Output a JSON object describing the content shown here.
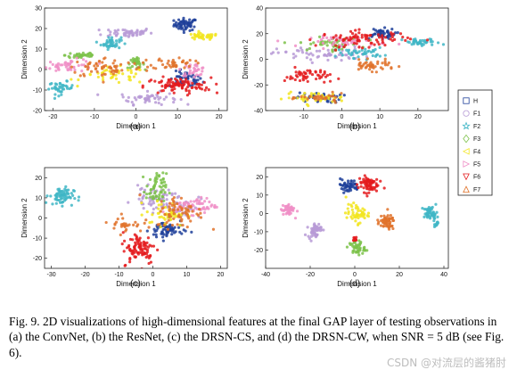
{
  "caption": "Fig. 9. 2D visualizations of high-dimensional features at the final GAP layer of testing observations in (a) the ConvNet, (b) the ResNet, (c) the DRSN-CS, and (d) the DRSN-CW, when SNR = 5 dB (see Fig. 6).",
  "watermark": "CSDN @对流层的酱猪肘",
  "legend": {
    "items": [
      {
        "label": "H",
        "marker": "square",
        "color": "#1f3f9a"
      },
      {
        "label": "F1",
        "marker": "circle",
        "color": "#b79ad6"
      },
      {
        "label": "F2",
        "marker": "star",
        "color": "#3fb6c6"
      },
      {
        "label": "F3",
        "marker": "diamond",
        "color": "#7dc24a"
      },
      {
        "label": "F4",
        "marker": "triangle-left",
        "color": "#f2e51f"
      },
      {
        "label": "F5",
        "marker": "triangle-right",
        "color": "#f08fc7"
      },
      {
        "label": "F6",
        "marker": "triangle-down",
        "color": "#e41a1c"
      },
      {
        "label": "F7",
        "marker": "triangle-up",
        "color": "#e0722a"
      }
    ]
  },
  "chart_data": [
    {
      "type": "scatter",
      "panel": "(a)",
      "xlabel": "Dimension 1",
      "ylabel": "Dimension 2",
      "xlim": [
        -22,
        22
      ],
      "ylim": [
        -20,
        30
      ],
      "xticks": [
        -20,
        -10,
        0,
        10,
        20
      ],
      "yticks": [
        -20,
        -10,
        0,
        10,
        20,
        30
      ],
      "clusters": [
        {
          "class": "H",
          "cx": 12,
          "cy": 22,
          "sx": 1.4,
          "sy": 1.5,
          "n": 60
        },
        {
          "class": "H",
          "cx": 12,
          "cy": -5,
          "sx": 2.0,
          "sy": 2.0,
          "n": 50
        },
        {
          "class": "F1",
          "cx": -2,
          "cy": 18,
          "sx": 3.0,
          "sy": 1.2,
          "n": 50
        },
        {
          "class": "F1",
          "cx": 3,
          "cy": -14,
          "sx": 3.5,
          "sy": 1.5,
          "n": 50
        },
        {
          "class": "F2",
          "cx": -6,
          "cy": 13,
          "sx": 1.2,
          "sy": 1.5,
          "n": 45
        },
        {
          "class": "F2",
          "cx": -18,
          "cy": -9,
          "sx": 1.5,
          "sy": 1.5,
          "n": 40
        },
        {
          "class": "F3",
          "cx": 0,
          "cy": 3,
          "sx": 1.0,
          "sy": 1.2,
          "n": 35
        },
        {
          "class": "F3",
          "cx": -13,
          "cy": 7,
          "sx": 2.0,
          "sy": 1.0,
          "n": 35
        },
        {
          "class": "F4",
          "cx": 16,
          "cy": 16,
          "sx": 2.0,
          "sy": 0.8,
          "n": 40
        },
        {
          "class": "F4",
          "cx": -5,
          "cy": -3,
          "sx": 4.0,
          "sy": 2.0,
          "n": 40
        },
        {
          "class": "F5",
          "cx": -16,
          "cy": 2,
          "sx": 3.0,
          "sy": 1.5,
          "n": 50
        },
        {
          "class": "F5",
          "cx": 14,
          "cy": 0,
          "sx": 1.5,
          "sy": 1.5,
          "n": 35
        },
        {
          "class": "F6",
          "cx": 10,
          "cy": -8,
          "sx": 4.0,
          "sy": 2.0,
          "n": 90
        },
        {
          "class": "F7",
          "cx": -7,
          "cy": 1,
          "sx": 4.5,
          "sy": 2.5,
          "n": 60
        },
        {
          "class": "F7",
          "cx": 9,
          "cy": 3,
          "sx": 2.5,
          "sy": 1.5,
          "n": 40
        }
      ]
    },
    {
      "type": "scatter",
      "panel": "(b)",
      "xlabel": "Dimension 1",
      "ylabel": "Dimension 2",
      "xlim": [
        -20,
        28
      ],
      "ylim": [
        -40,
        40
      ],
      "xticks": [
        -10,
        0,
        10,
        20
      ],
      "yticks": [
        -40,
        -20,
        0,
        20,
        40
      ],
      "clusters": [
        {
          "class": "H",
          "cx": 10,
          "cy": 20,
          "sx": 2.0,
          "sy": 2.0,
          "n": 50
        },
        {
          "class": "H",
          "cx": -6,
          "cy": -30,
          "sx": 3.0,
          "sy": 2.0,
          "n": 40
        },
        {
          "class": "F1",
          "cx": -5,
          "cy": 4,
          "sx": 6.0,
          "sy": 3.0,
          "n": 60
        },
        {
          "class": "F2",
          "cx": 21,
          "cy": 13,
          "sx": 2.5,
          "sy": 1.5,
          "n": 40
        },
        {
          "class": "F2",
          "cx": 5,
          "cy": 5,
          "sx": 3.0,
          "sy": 2.0,
          "n": 40
        },
        {
          "class": "F3",
          "cx": -3,
          "cy": 12,
          "sx": 4.0,
          "sy": 2.5,
          "n": 50
        },
        {
          "class": "F4",
          "cx": -7,
          "cy": -30,
          "sx": 4.0,
          "sy": 2.0,
          "n": 40
        },
        {
          "class": "F5",
          "cx": 2,
          "cy": 14,
          "sx": 5.0,
          "sy": 2.0,
          "n": 50
        },
        {
          "class": "F6",
          "cx": 6,
          "cy": 16,
          "sx": 6.0,
          "sy": 3.0,
          "n": 80
        },
        {
          "class": "F6",
          "cx": -9,
          "cy": -13,
          "sx": 3.0,
          "sy": 3.0,
          "n": 50
        },
        {
          "class": "F7",
          "cx": 8,
          "cy": -5,
          "sx": 3.0,
          "sy": 2.0,
          "n": 45
        },
        {
          "class": "F7",
          "cx": -5,
          "cy": -30,
          "sx": 3.0,
          "sy": 1.5,
          "n": 30
        }
      ]
    },
    {
      "type": "scatter",
      "panel": "(c)",
      "xlabel": "Dimension 1",
      "ylabel": "Dimension 2",
      "xlim": [
        -32,
        22
      ],
      "ylim": [
        -25,
        25
      ],
      "xticks": [
        -30,
        -20,
        -10,
        0,
        10,
        20
      ],
      "yticks": [
        -20,
        -10,
        0,
        10,
        20
      ],
      "clusters": [
        {
          "class": "H",
          "cx": 4,
          "cy": -6,
          "sx": 2.5,
          "sy": 2.5,
          "n": 70
        },
        {
          "class": "F1",
          "cx": 0,
          "cy": 10,
          "sx": 3.0,
          "sy": 2.5,
          "n": 50
        },
        {
          "class": "F1",
          "cx": 8,
          "cy": 6,
          "sx": 3.0,
          "sy": 3.0,
          "n": 40
        },
        {
          "class": "F2",
          "cx": -27,
          "cy": 11,
          "sx": 1.8,
          "sy": 2.2,
          "n": 70
        },
        {
          "class": "F3",
          "cx": 1,
          "cy": 14,
          "sx": 1.5,
          "sy": 4.0,
          "n": 60
        },
        {
          "class": "F4",
          "cx": 4,
          "cy": 2,
          "sx": 3.0,
          "sy": 3.0,
          "n": 50
        },
        {
          "class": "F5",
          "cx": 13,
          "cy": 6,
          "sx": 3.0,
          "sy": 2.0,
          "n": 60
        },
        {
          "class": "F6",
          "cx": -4,
          "cy": -15,
          "sx": 2.5,
          "sy": 4.0,
          "n": 90
        },
        {
          "class": "F7",
          "cx": 8,
          "cy": 3,
          "sx": 3.5,
          "sy": 4.0,
          "n": 70
        },
        {
          "class": "F7",
          "cx": -8,
          "cy": -3,
          "sx": 2.5,
          "sy": 2.0,
          "n": 30
        }
      ]
    },
    {
      "type": "scatter",
      "panel": "(d)",
      "xlabel": "Dimension 1",
      "ylabel": "Dimension 2",
      "xlim": [
        -40,
        42
      ],
      "ylim": [
        -30,
        25
      ],
      "xticks": [
        -40,
        -20,
        0,
        20,
        40
      ],
      "yticks": [
        -20,
        -10,
        0,
        10,
        20
      ],
      "clusters": [
        {
          "class": "H",
          "cx": -3,
          "cy": 15,
          "sx": 2.5,
          "sy": 1.8,
          "n": 50
        },
        {
          "class": "F1",
          "cx": -18,
          "cy": -9,
          "sx": 1.5,
          "sy": 2.0,
          "n": 50
        },
        {
          "class": "F2",
          "cx": 34,
          "cy": 0,
          "sx": 1.5,
          "sy": 1.8,
          "n": 50
        },
        {
          "class": "F2",
          "cx": 37,
          "cy": -6,
          "sx": 0.6,
          "sy": 0.8,
          "n": 10
        },
        {
          "class": "F3",
          "cx": 1,
          "cy": -19,
          "sx": 1.8,
          "sy": 2.0,
          "n": 45
        },
        {
          "class": "F4",
          "cx": 1,
          "cy": 0,
          "sx": 2.5,
          "sy": 2.5,
          "n": 50
        },
        {
          "class": "F5",
          "cx": -30,
          "cy": 2,
          "sx": 1.5,
          "sy": 1.8,
          "n": 45
        },
        {
          "class": "F6",
          "cx": 6,
          "cy": 16,
          "sx": 2.2,
          "sy": 2.2,
          "n": 70
        },
        {
          "class": "F6",
          "cx": 0,
          "cy": -14,
          "sx": 0.8,
          "sy": 0.8,
          "n": 10
        },
        {
          "class": "F7",
          "cx": 14,
          "cy": -5,
          "sx": 2.0,
          "sy": 2.0,
          "n": 55
        }
      ]
    }
  ]
}
